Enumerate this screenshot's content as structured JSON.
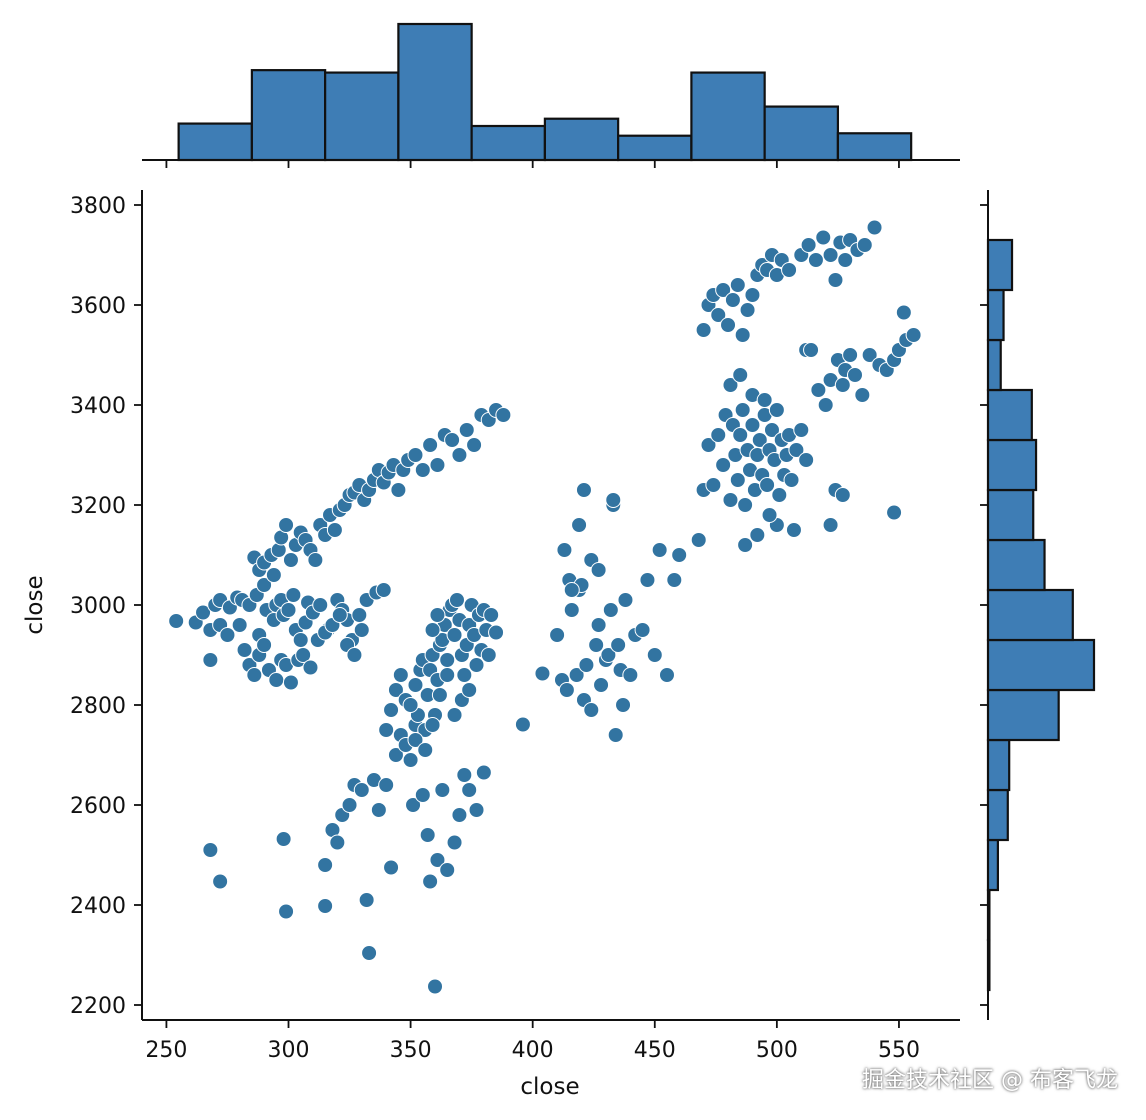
{
  "chart_data": {
    "type": "scatter",
    "title": "",
    "xlabel": "close",
    "ylabel": "close",
    "xlim": [
      240,
      575
    ],
    "ylim": [
      2170,
      3830
    ],
    "xticks": [
      250,
      300,
      350,
      400,
      450,
      500,
      550
    ],
    "yticks": [
      2200,
      2400,
      2600,
      2800,
      3000,
      3200,
      3400,
      3600,
      3800
    ],
    "grid": false,
    "marker_color": "#3274a1",
    "edge_color": "#ffffff",
    "bar_color": "#3e7db5",
    "bar_edge_color": "#111111",
    "marginal_x_histogram": {
      "bin_edges": [
        255,
        285,
        315,
        345,
        375,
        405,
        435,
        465,
        495,
        525,
        555
      ],
      "counts": [
        15,
        37,
        36,
        56,
        14,
        17,
        10,
        36,
        22,
        11
      ]
    },
    "marginal_y_histogram": {
      "bin_edges": [
        2230,
        2330,
        2430,
        2530,
        2630,
        2730,
        2830,
        2930,
        3030,
        3130,
        3230,
        3330,
        3430,
        3530,
        3630,
        3730
      ],
      "counts": [
        1,
        1,
        7,
        14,
        15,
        50,
        75,
        60,
        40,
        32,
        34,
        31,
        9,
        11,
        17
      ]
    },
    "points": [
      [
        254,
        2968
      ],
      [
        262,
        2965
      ],
      [
        265,
        2985
      ],
      [
        268,
        2950
      ],
      [
        268,
        2890
      ],
      [
        270,
        3000
      ],
      [
        272,
        3010
      ],
      [
        272,
        2960
      ],
      [
        275,
        2940
      ],
      [
        276,
        2995
      ],
      [
        279,
        3015
      ],
      [
        280,
        2960
      ],
      [
        281,
        3010
      ],
      [
        284,
        3000
      ],
      [
        287,
        3020
      ],
      [
        288,
        2940
      ],
      [
        290,
        3040
      ],
      [
        291,
        2990
      ],
      [
        294,
        2970
      ],
      [
        295,
        3000
      ],
      [
        297,
        3010
      ],
      [
        298,
        2980
      ],
      [
        300,
        2990
      ],
      [
        302,
        3020
      ],
      [
        303,
        2950
      ],
      [
        305,
        2930
      ],
      [
        307,
        2965
      ],
      [
        308,
        3005
      ],
      [
        310,
        2985
      ],
      [
        313,
        3000
      ],
      [
        316,
        2950
      ],
      [
        320,
        3010
      ],
      [
        322,
        2990
      ],
      [
        324,
        2970
      ],
      [
        326,
        2930
      ],
      [
        329,
        2980
      ],
      [
        332,
        3010
      ],
      [
        336,
        3025
      ],
      [
        339,
        3030
      ],
      [
        286,
        3095
      ],
      [
        288,
        3070
      ],
      [
        290,
        3085
      ],
      [
        293,
        3100
      ],
      [
        294,
        3060
      ],
      [
        296,
        3110
      ],
      [
        297,
        3135
      ],
      [
        299,
        3160
      ],
      [
        301,
        3090
      ],
      [
        303,
        3120
      ],
      [
        305,
        3145
      ],
      [
        307,
        3130
      ],
      [
        309,
        3110
      ],
      [
        311,
        3090
      ],
      [
        313,
        3160
      ],
      [
        315,
        3140
      ],
      [
        317,
        3180
      ],
      [
        319,
        3150
      ],
      [
        321,
        3190
      ],
      [
        323,
        3200
      ],
      [
        325,
        3220
      ],
      [
        327,
        3225
      ],
      [
        329,
        3240
      ],
      [
        331,
        3210
      ],
      [
        333,
        3230
      ],
      [
        335,
        3250
      ],
      [
        337,
        3270
      ],
      [
        339,
        3245
      ],
      [
        341,
        3265
      ],
      [
        343,
        3280
      ],
      [
        345,
        3230
      ],
      [
        347,
        3270
      ],
      [
        349,
        3290
      ],
      [
        352,
        3300
      ],
      [
        355,
        3270
      ],
      [
        358,
        3320
      ],
      [
        361,
        3280
      ],
      [
        364,
        3340
      ],
      [
        367,
        3330
      ],
      [
        370,
        3300
      ],
      [
        373,
        3350
      ],
      [
        376,
        3320
      ],
      [
        379,
        3380
      ],
      [
        382,
        3370
      ],
      [
        385,
        3390
      ],
      [
        388,
        3380
      ],
      [
        282,
        2910
      ],
      [
        284,
        2880
      ],
      [
        286,
        2860
      ],
      [
        288,
        2900
      ],
      [
        290,
        2920
      ],
      [
        292,
        2870
      ],
      [
        295,
        2850
      ],
      [
        297,
        2890
      ],
      [
        299,
        2880
      ],
      [
        301,
        2845
      ],
      [
        304,
        2890
      ],
      [
        306,
        2900
      ],
      [
        309,
        2875
      ],
      [
        312,
        2930
      ],
      [
        315,
        2945
      ],
      [
        318,
        2960
      ],
      [
        321,
        2980
      ],
      [
        324,
        2920
      ],
      [
        327,
        2900
      ],
      [
        330,
        2950
      ],
      [
        268,
        2510
      ],
      [
        272,
        2447
      ],
      [
        298,
        2532
      ],
      [
        299,
        2387
      ],
      [
        315,
        2480
      ],
      [
        315,
        2398
      ],
      [
        318,
        2550
      ],
      [
        320,
        2525
      ],
      [
        322,
        2580
      ],
      [
        325,
        2600
      ],
      [
        327,
        2640
      ],
      [
        330,
        2630
      ],
      [
        332,
        2410
      ],
      [
        333,
        2304
      ],
      [
        335,
        2650
      ],
      [
        337,
        2590
      ],
      [
        340,
        2640
      ],
      [
        342,
        2475
      ],
      [
        344,
        2700
      ],
      [
        346,
        2740
      ],
      [
        348,
        2720
      ],
      [
        350,
        2690
      ],
      [
        351,
        2600
      ],
      [
        352,
        2760
      ],
      [
        353,
        2780
      ],
      [
        355,
        2620
      ],
      [
        357,
        2540
      ],
      [
        358,
        2447
      ],
      [
        360,
        2237
      ],
      [
        361,
        2490
      ],
      [
        363,
        2630
      ],
      [
        365,
        2470
      ],
      [
        368,
        2525
      ],
      [
        370,
        2580
      ],
      [
        372,
        2660
      ],
      [
        374,
        2630
      ],
      [
        377,
        2590
      ],
      [
        380,
        2665
      ],
      [
        396,
        2761
      ],
      [
        340,
        2750
      ],
      [
        342,
        2790
      ],
      [
        344,
        2830
      ],
      [
        346,
        2860
      ],
      [
        348,
        2810
      ],
      [
        350,
        2800
      ],
      [
        352,
        2840
      ],
      [
        354,
        2870
      ],
      [
        355,
        2890
      ],
      [
        356,
        2750
      ],
      [
        357,
        2820
      ],
      [
        358,
        2870
      ],
      [
        359,
        2900
      ],
      [
        360,
        2780
      ],
      [
        361,
        2850
      ],
      [
        362,
        2920
      ],
      [
        363,
        2930
      ],
      [
        364,
        2960
      ],
      [
        365,
        2890
      ],
      [
        366,
        2990
      ],
      [
        367,
        3000
      ],
      [
        368,
        2940
      ],
      [
        369,
        3010
      ],
      [
        370,
        2970
      ],
      [
        371,
        2900
      ],
      [
        372,
        2860
      ],
      [
        373,
        2920
      ],
      [
        374,
        2960
      ],
      [
        375,
        3000
      ],
      [
        376,
        2940
      ],
      [
        377,
        2880
      ],
      [
        378,
        2980
      ],
      [
        379,
        2910
      ],
      [
        380,
        2990
      ],
      [
        381,
        2950
      ],
      [
        382,
        2900
      ],
      [
        383,
        2980
      ],
      [
        385,
        2945
      ],
      [
        352,
        2730
      ],
      [
        356,
        2710
      ],
      [
        359,
        2760
      ],
      [
        362,
        2820
      ],
      [
        365,
        2860
      ],
      [
        368,
        2780
      ],
      [
        371,
        2810
      ],
      [
        374,
        2830
      ],
      [
        359,
        2950
      ],
      [
        361,
        2980
      ],
      [
        404,
        2863
      ],
      [
        410,
        2940
      ],
      [
        412,
        2850
      ],
      [
        414,
        2830
      ],
      [
        415,
        3050
      ],
      [
        416,
        2990
      ],
      [
        418,
        2860
      ],
      [
        419,
        3030
      ],
      [
        420,
        3040
      ],
      [
        421,
        2810
      ],
      [
        422,
        2880
      ],
      [
        424,
        2790
      ],
      [
        426,
        2920
      ],
      [
        427,
        2960
      ],
      [
        428,
        2840
      ],
      [
        430,
        2890
      ],
      [
        431,
        2900
      ],
      [
        432,
        2990
      ],
      [
        434,
        2740
      ],
      [
        435,
        2920
      ],
      [
        436,
        2870
      ],
      [
        437,
        2800
      ],
      [
        438,
        3010
      ],
      [
        440,
        2860
      ],
      [
        442,
        2940
      ],
      [
        445,
        2950
      ],
      [
        447,
        3050
      ],
      [
        450,
        2900
      ],
      [
        452,
        3110
      ],
      [
        455,
        2860
      ],
      [
        458,
        3050
      ],
      [
        460,
        3100
      ],
      [
        413,
        3110
      ],
      [
        416,
        3030
      ],
      [
        419,
        3160
      ],
      [
        421,
        3230
      ],
      [
        424,
        3090
      ],
      [
        427,
        3070
      ],
      [
        433,
        3200
      ],
      [
        433,
        3210
      ],
      [
        468,
        3130
      ],
      [
        470,
        3230
      ],
      [
        472,
        3320
      ],
      [
        474,
        3240
      ],
      [
        476,
        3340
      ],
      [
        478,
        3280
      ],
      [
        479,
        3380
      ],
      [
        481,
        3210
      ],
      [
        482,
        3360
      ],
      [
        483,
        3300
      ],
      [
        484,
        3250
      ],
      [
        485,
        3340
      ],
      [
        486,
        3390
      ],
      [
        487,
        3200
      ],
      [
        488,
        3310
      ],
      [
        489,
        3270
      ],
      [
        490,
        3360
      ],
      [
        491,
        3230
      ],
      [
        492,
        3300
      ],
      [
        493,
        3330
      ],
      [
        494,
        3260
      ],
      [
        495,
        3380
      ],
      [
        496,
        3240
      ],
      [
        497,
        3310
      ],
      [
        498,
        3350
      ],
      [
        499,
        3290
      ],
      [
        500,
        3160
      ],
      [
        501,
        3220
      ],
      [
        502,
        3330
      ],
      [
        503,
        3260
      ],
      [
        504,
        3300
      ],
      [
        505,
        3340
      ],
      [
        506,
        3250
      ],
      [
        508,
        3310
      ],
      [
        510,
        3350
      ],
      [
        512,
        3290
      ],
      [
        487,
        3120
      ],
      [
        492,
        3140
      ],
      [
        497,
        3180
      ],
      [
        507,
        3150
      ],
      [
        481,
        3440
      ],
      [
        485,
        3460
      ],
      [
        490,
        3420
      ],
      [
        495,
        3410
      ],
      [
        500,
        3390
      ],
      [
        470,
        3550
      ],
      [
        472,
        3600
      ],
      [
        474,
        3620
      ],
      [
        476,
        3580
      ],
      [
        478,
        3630
      ],
      [
        480,
        3560
      ],
      [
        482,
        3610
      ],
      [
        484,
        3640
      ],
      [
        486,
        3540
      ],
      [
        488,
        3590
      ],
      [
        490,
        3620
      ],
      [
        492,
        3660
      ],
      [
        494,
        3680
      ],
      [
        496,
        3670
      ],
      [
        498,
        3700
      ],
      [
        500,
        3660
      ],
      [
        502,
        3690
      ],
      [
        505,
        3670
      ],
      [
        510,
        3700
      ],
      [
        513,
        3720
      ],
      [
        516,
        3690
      ],
      [
        519,
        3735
      ],
      [
        522,
        3700
      ],
      [
        524,
        3650
      ],
      [
        526,
        3725
      ],
      [
        528,
        3690
      ],
      [
        530,
        3730
      ],
      [
        533,
        3710
      ],
      [
        536,
        3720
      ],
      [
        540,
        3755
      ],
      [
        512,
        3510
      ],
      [
        514,
        3510
      ],
      [
        517,
        3430
      ],
      [
        520,
        3400
      ],
      [
        522,
        3450
      ],
      [
        525,
        3490
      ],
      [
        527,
        3440
      ],
      [
        528,
        3470
      ],
      [
        530,
        3500
      ],
      [
        532,
        3460
      ],
      [
        535,
        3420
      ],
      [
        538,
        3500
      ],
      [
        542,
        3480
      ],
      [
        545,
        3470
      ],
      [
        548,
        3490
      ],
      [
        550,
        3510
      ],
      [
        553,
        3530
      ],
      [
        556,
        3540
      ],
      [
        552,
        3585
      ],
      [
        524,
        3230
      ],
      [
        527,
        3220
      ],
      [
        522,
        3160
      ],
      [
        548,
        3185
      ]
    ]
  },
  "watermark": "掘金技术社区 @ 布客飞龙"
}
